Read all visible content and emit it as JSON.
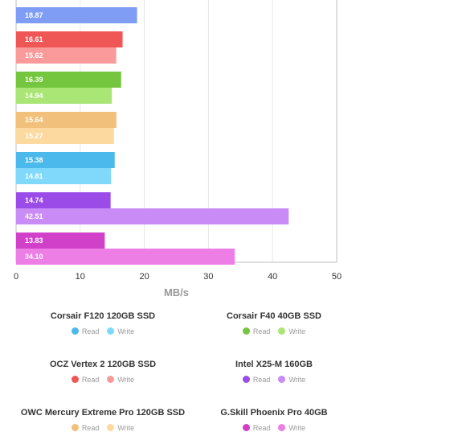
{
  "chart_data": {
    "type": "bar",
    "orientation": "horizontal",
    "xlabel": "MB/s",
    "xlim": [
      0,
      50
    ],
    "xticks": [
      0,
      10,
      20,
      30,
      40,
      50
    ],
    "grid": true,
    "groups": [
      {
        "read": null,
        "write": 18.87,
        "read_color": null,
        "write_color": "#7f9df5"
      },
      {
        "read": 16.61,
        "write": 15.62,
        "read_color": "#ef5656",
        "write_color": "#fb9a9a"
      },
      {
        "read": 16.39,
        "write": 14.94,
        "read_color": "#74c63e",
        "write_color": "#a9e676"
      },
      {
        "read": 15.64,
        "write": 15.27,
        "read_color": "#f1c07a",
        "write_color": "#fbd99f"
      },
      {
        "read": 15.38,
        "write": 14.81,
        "read_color": "#4bb9ec",
        "write_color": "#80d9fb"
      },
      {
        "read": 14.74,
        "write": 42.51,
        "read_color": "#9a4be8",
        "write_color": "#c98cf7"
      },
      {
        "read": 13.83,
        "write": 34.1,
        "read_color": "#d040c8",
        "write_color": "#ec7ee6"
      }
    ]
  },
  "legend": [
    {
      "title": "Corsair F120 120GB SSD",
      "read_label": "Read",
      "write_label": "Write",
      "read_color": "#4bb9ec",
      "write_color": "#80d9fb"
    },
    {
      "title": "Corsair F40 40GB SSD",
      "read_label": "Read",
      "write_label": "Write",
      "read_color": "#74c63e",
      "write_color": "#a9e676"
    },
    {
      "title": "OCZ Vertex 2 120GB SSD",
      "read_label": "Read",
      "write_label": "Write",
      "read_color": "#ef5656",
      "write_color": "#fb9a9a"
    },
    {
      "title": "Intel X25-M 160GB",
      "read_label": "Read",
      "write_label": "Write",
      "read_color": "#9a4be8",
      "write_color": "#c98cf7"
    },
    {
      "title": "OWC Mercury Extreme Pro 120GB SSD",
      "read_label": "Read",
      "write_label": "Write",
      "read_color": "#f1c07a",
      "write_color": "#fbd99f"
    },
    {
      "title": "G.Skill Phoenix Pro 40GB",
      "read_label": "Read",
      "write_label": "Write",
      "read_color": "#d040c8",
      "write_color": "#ec7ee6"
    }
  ]
}
